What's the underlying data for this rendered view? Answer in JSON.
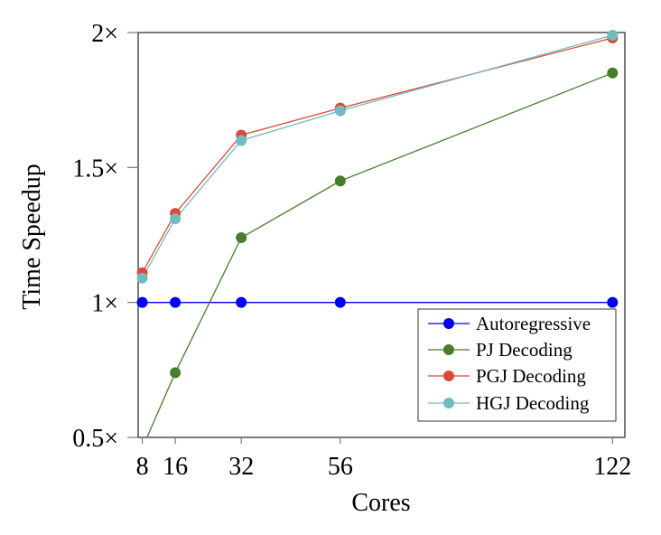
{
  "chart_data": {
    "type": "line",
    "title": "",
    "xlabel": "Cores",
    "ylabel": "Time Speedup",
    "x": [
      8,
      16,
      32,
      56,
      122
    ],
    "xticks": [
      8,
      16,
      32,
      56,
      122
    ],
    "xtick_labels": [
      "8",
      "16",
      "32",
      "56",
      "122"
    ],
    "yticks": [
      0.5,
      1,
      1.5,
      2
    ],
    "ytick_labels": [
      "0.5×",
      "1×",
      "1.5×",
      "2×"
    ],
    "xlim": [
      7,
      125
    ],
    "ylim": [
      0.5,
      2
    ],
    "grid": false,
    "legend_position": "bottom-right",
    "series": [
      {
        "name": "Autoregressive",
        "color": "#0000ee",
        "values": [
          1,
          1,
          1,
          1,
          1
        ]
      },
      {
        "name": "PJ Decoding",
        "color": "#4a7c2c",
        "values": [
          0.46,
          0.74,
          1.24,
          1.45,
          1.85
        ]
      },
      {
        "name": "PGJ Decoding",
        "color": "#d94a38",
        "values": [
          1.11,
          1.33,
          1.62,
          1.72,
          1.98
        ]
      },
      {
        "name": "HGJ Decoding",
        "color": "#72bcc0",
        "values": [
          1.09,
          1.31,
          1.6,
          1.71,
          1.99
        ]
      }
    ]
  }
}
